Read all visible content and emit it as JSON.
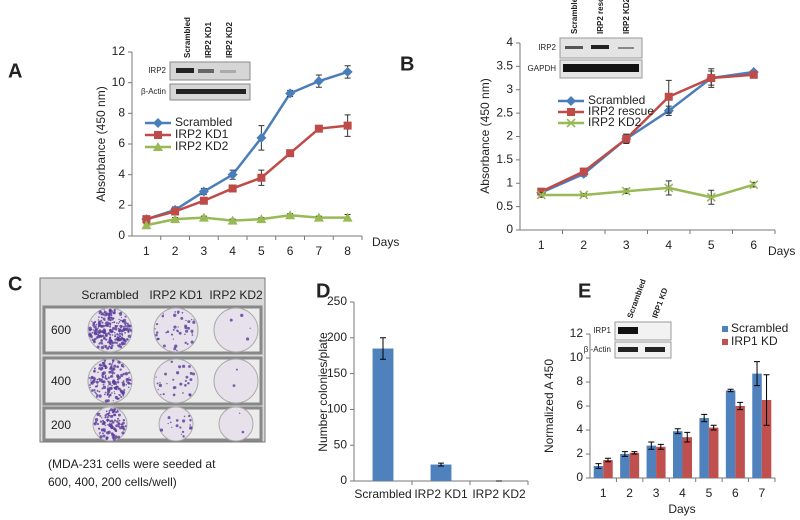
{
  "chart_data": [
    {
      "type": "line",
      "panel": "A",
      "xlabel": "Days",
      "ylabel": "Absorbance (450 nm)",
      "categories": [
        "1",
        "2",
        "3",
        "4",
        "5",
        "6",
        "7",
        "8"
      ],
      "ylim": [
        0,
        12
      ],
      "yticks": [
        0,
        2,
        4,
        6,
        8,
        10,
        12
      ],
      "series": [
        {
          "name": "Scrambled",
          "color": "#4a7ebb",
          "marker": "diamond",
          "values": [
            1.1,
            1.7,
            2.9,
            4.0,
            6.4,
            9.3,
            10.1,
            10.7
          ],
          "errors": [
            0.1,
            0.2,
            0.2,
            0.3,
            0.8,
            0.2,
            0.4,
            0.4
          ]
        },
        {
          "name": "IRP2 KD1",
          "color": "#be4b48",
          "marker": "square",
          "values": [
            1.1,
            1.6,
            2.3,
            3.1,
            3.8,
            5.4,
            7.0,
            7.2
          ],
          "errors": [
            0.1,
            0.1,
            0.2,
            0.2,
            0.5,
            0.2,
            0.2,
            0.7
          ]
        },
        {
          "name": "IRP2 KD2",
          "color": "#98b954",
          "marker": "triangle",
          "values": [
            0.7,
            1.1,
            1.2,
            1.0,
            1.1,
            1.35,
            1.2,
            1.2
          ],
          "errors": [
            0.1,
            0.1,
            0.1,
            0.1,
            0.1,
            0.1,
            0.1,
            0.2
          ]
        }
      ],
      "inset": {
        "columns": [
          "Scrambled",
          "IRP2 KD1",
          "IRP2 KD2"
        ],
        "rows": [
          "IRP2",
          "β-Actin"
        ]
      }
    },
    {
      "type": "line",
      "panel": "B",
      "xlabel": "Days",
      "ylabel": "Absorbance (450 nm)",
      "categories": [
        "1",
        "2",
        "3",
        "4",
        "5",
        "6"
      ],
      "ylim": [
        0,
        4
      ],
      "yticks": [
        0,
        0.5,
        1,
        1.5,
        2,
        2.5,
        3,
        3.5,
        4
      ],
      "series": [
        {
          "name": "Scrambled",
          "color": "#4a7ebb",
          "marker": "diamond",
          "values": [
            0.8,
            1.2,
            1.95,
            2.55,
            3.25,
            3.38
          ],
          "errors": [
            0.05,
            0.05,
            0.08,
            0.1,
            0.15,
            0.03
          ]
        },
        {
          "name": "IRP2 rescue",
          "color": "#be4b48",
          "marker": "square",
          "values": [
            0.82,
            1.25,
            1.95,
            2.85,
            3.25,
            3.32
          ],
          "errors": [
            0.05,
            0.05,
            0.1,
            0.35,
            0.2,
            0.05
          ]
        },
        {
          "name": "IRP2 KD2",
          "color": "#98b954",
          "marker": "x",
          "values": [
            0.75,
            0.75,
            0.83,
            0.9,
            0.7,
            0.97
          ],
          "errors": [
            0.05,
            0.03,
            0.05,
            0.15,
            0.15,
            0.05
          ]
        }
      ],
      "inset": {
        "columns": [
          "Scrambled",
          "IRP2 rescue",
          "IRP2 KD2"
        ],
        "rows": [
          "IRP2",
          "GAPDH"
        ]
      }
    },
    {
      "type": "bar",
      "panel": "D",
      "ylabel": "Number colonies/plate",
      "categories": [
        "Scrambled",
        "IRP2 KD1",
        "IRP2 KD2"
      ],
      "values": [
        185,
        23,
        0
      ],
      "errors": [
        15,
        2,
        0
      ],
      "color": "#4f81bd",
      "ylim": [
        0,
        250
      ],
      "yticks": [
        0,
        50,
        100,
        150,
        200,
        250
      ]
    },
    {
      "type": "bar",
      "panel": "E",
      "xlabel": "Days",
      "ylabel": "Normalized A 450",
      "categories": [
        "1",
        "2",
        "3",
        "4",
        "5",
        "6",
        "7"
      ],
      "ylim": [
        0,
        12
      ],
      "yticks": [
        0,
        2,
        4,
        6,
        8,
        10,
        12
      ],
      "series": [
        {
          "name": "Scrambled",
          "color": "#4f81bd",
          "values": [
            1.0,
            2.0,
            2.7,
            3.9,
            5.0,
            7.3,
            8.7
          ],
          "errors": [
            0.2,
            0.2,
            0.3,
            0.2,
            0.3,
            0.1,
            1.0
          ]
        },
        {
          "name": "IRP1 KD",
          "color": "#c0504d",
          "values": [
            1.5,
            2.1,
            2.6,
            3.4,
            4.2,
            6.0,
            6.5
          ],
          "errors": [
            0.15,
            0.1,
            0.2,
            0.4,
            0.2,
            0.3,
            2.1
          ]
        }
      ],
      "inset": {
        "columns": [
          "Scrambled",
          "IRP1 KD"
        ],
        "rows": [
          "IRP1",
          "β -Actin"
        ]
      }
    }
  ],
  "panel_c": {
    "panel": "C",
    "columns": [
      "Scrambled",
      "IRP2 KD1",
      "IRP2 KD2"
    ],
    "rows": [
      "600",
      "400",
      "200"
    ],
    "caption": [
      "(MDA-231 cells were seeded at",
      "600, 400, 200 cells/well)"
    ]
  }
}
